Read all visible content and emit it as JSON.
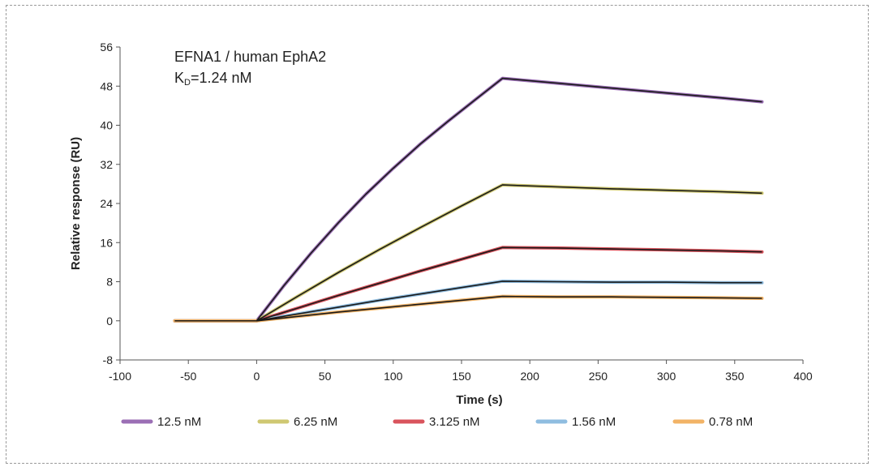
{
  "chart_data": {
    "type": "line",
    "title": "",
    "annotation": {
      "line1": "EFNA1 / human EphA2",
      "kd_prefix": "K",
      "kd_sub": "D",
      "kd_value": "=1.24 nM"
    },
    "xlabel": "Time (s)",
    "ylabel": "Relative response (RU)",
    "xlim": [
      -100,
      400
    ],
    "ylim": [
      -8,
      56
    ],
    "xticks": [
      -100,
      -50,
      0,
      50,
      100,
      150,
      200,
      250,
      300,
      350,
      400
    ],
    "yticks": [
      -8,
      0,
      8,
      16,
      24,
      32,
      40,
      48,
      56
    ],
    "legend_position": "bottom",
    "association_end_s": 180,
    "fit_color": "#1a1a1a",
    "series": [
      {
        "name": "12.5 nM",
        "color": "#9b6fb5",
        "x": [
          -60,
          0,
          20,
          40,
          60,
          80,
          100,
          120,
          140,
          160,
          180,
          220,
          260,
          300,
          340,
          370
        ],
        "y": [
          0,
          0,
          7.2,
          13.9,
          20.1,
          25.9,
          31.2,
          36.2,
          40.8,
          45.2,
          49.6,
          48.6,
          47.6,
          46.6,
          45.6,
          44.8
        ]
      },
      {
        "name": "6.25 nM",
        "color": "#cfc872",
        "x": [
          -60,
          0,
          30,
          60,
          90,
          120,
          150,
          180,
          220,
          260,
          300,
          340,
          370
        ],
        "y": [
          0,
          0,
          5.0,
          9.9,
          14.6,
          19.1,
          23.5,
          27.8,
          27.4,
          27.0,
          26.7,
          26.4,
          26.1
        ]
      },
      {
        "name": "3.125 nM",
        "color": "#d9545d",
        "x": [
          -60,
          0,
          30,
          60,
          90,
          120,
          150,
          180,
          220,
          260,
          300,
          340,
          370
        ],
        "y": [
          0,
          0,
          2.6,
          5.2,
          7.7,
          10.2,
          12.6,
          15.0,
          14.9,
          14.7,
          14.5,
          14.3,
          14.1
        ]
      },
      {
        "name": "1.56 nM",
        "color": "#8fbde0",
        "x": [
          -60,
          0,
          30,
          60,
          90,
          120,
          150,
          180,
          220,
          260,
          300,
          340,
          370
        ],
        "y": [
          0,
          0,
          1.4,
          2.8,
          4.2,
          5.5,
          6.8,
          8.1,
          8.0,
          7.9,
          7.9,
          7.8,
          7.8
        ]
      },
      {
        "name": "0.78 nM",
        "color": "#f2b366",
        "x": [
          -60,
          0,
          30,
          60,
          90,
          120,
          150,
          180,
          220,
          260,
          300,
          340,
          370
        ],
        "y": [
          0,
          0,
          0.9,
          1.8,
          2.6,
          3.4,
          4.2,
          5.0,
          4.9,
          4.9,
          4.8,
          4.7,
          4.6
        ]
      }
    ]
  }
}
